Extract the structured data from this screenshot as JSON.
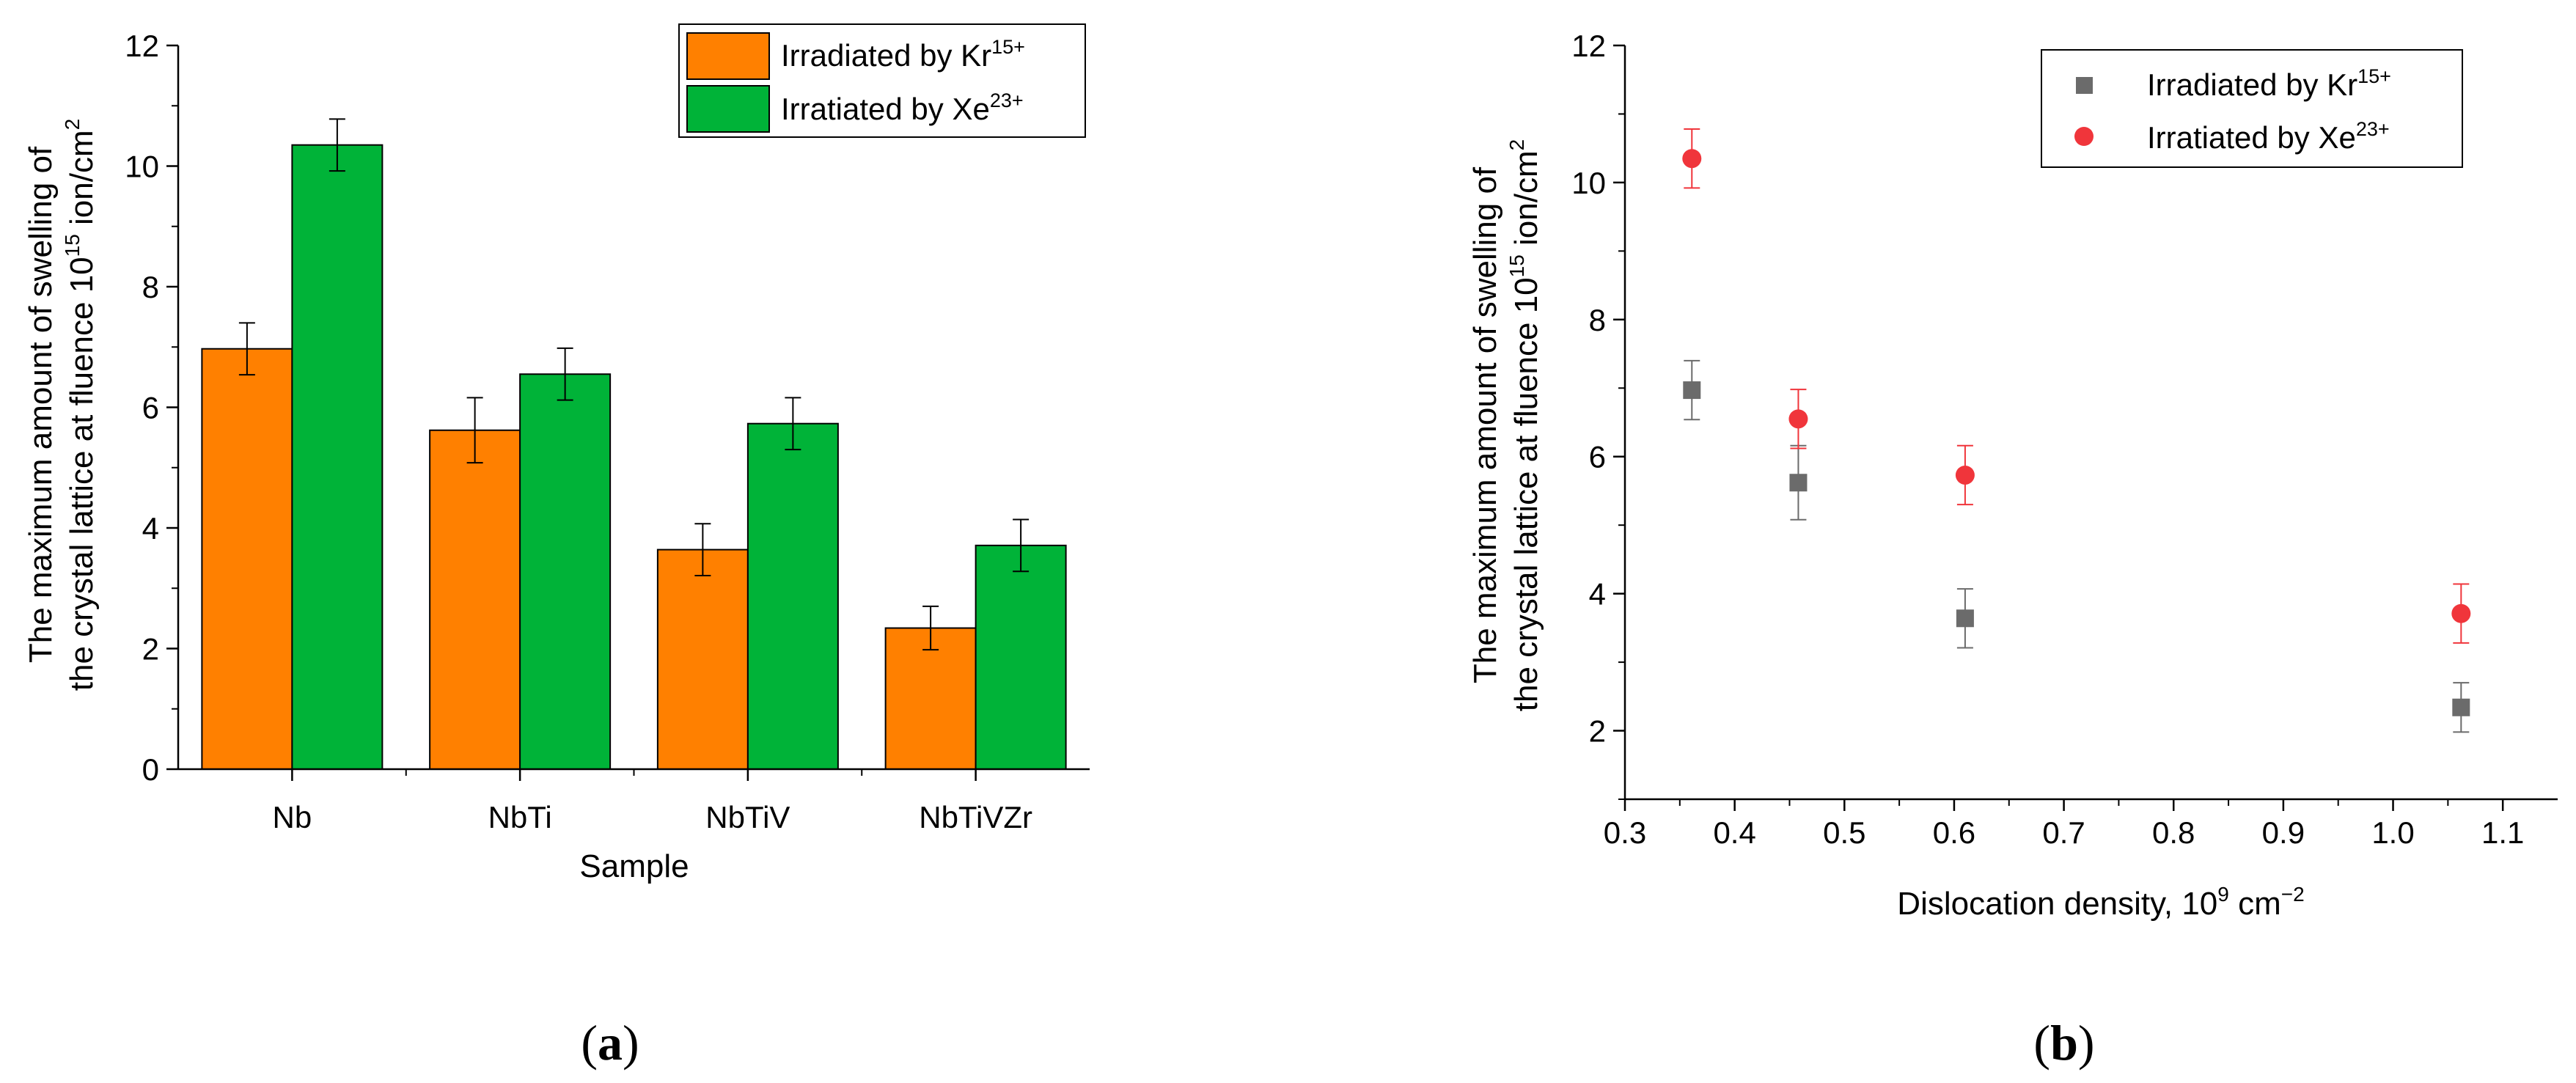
{
  "chart_data": [
    {
      "id": "a",
      "type": "bar",
      "panel_label": "a",
      "xlabel": "Sample",
      "ylabel_line1": "The maximum amount of swelling of",
      "ylabel_line2": "the crystal lattice at fluence 10",
      "ylabel_sup": "15",
      "ylabel_unit": " ion/cm",
      "ylabel_unit_sup": "2",
      "categories": [
        "Nb",
        "NbTi",
        "NbTiV",
        "NbTiVZr"
      ],
      "ylim": [
        0,
        12
      ],
      "yticks": [
        "0",
        "2",
        "4",
        "6",
        "8",
        "10",
        "12"
      ],
      "legend_position": "top-right",
      "series": [
        {
          "name": "Irradiated by Kr",
          "name_sup": "15+",
          "color": "#ff8000",
          "values": [
            6.97,
            5.62,
            3.64,
            2.34
          ],
          "errors": [
            0.43,
            0.54,
            0.43,
            0.36
          ]
        },
        {
          "name": "Irratiated by Xe",
          "name_sup": "23+",
          "color": "#00b338",
          "values": [
            10.35,
            6.55,
            5.73,
            3.71
          ],
          "errors": [
            0.43,
            0.43,
            0.43,
            0.43
          ]
        }
      ]
    },
    {
      "id": "b",
      "type": "scatter",
      "panel_label": "b",
      "xlabel": "Dislocation density, 10",
      "xlabel_sup": "9",
      "xlabel_unit": " cm",
      "xlabel_unit_sup": "−2",
      "ylabel_line1": "The maximum amount of swelling of",
      "ylabel_line2": "the crystal lattice at fluence 10",
      "ylabel_sup": "15",
      "ylabel_unit": " ion/cm",
      "ylabel_unit_sup": "2",
      "xlim": [
        0.3,
        1.15
      ],
      "ylim": [
        1,
        12
      ],
      "xticks": [
        "0.3",
        "0.4",
        "0.5",
        "0.6",
        "0.7",
        "0.8",
        "0.9",
        "1.0",
        "1.1"
      ],
      "yticks": [
        "2",
        "4",
        "6",
        "8",
        "10",
        "12"
      ],
      "legend_position": "top-right",
      "series": [
        {
          "name": "Irradiated by Kr",
          "name_sup": "15+",
          "color": "#6b6b6b",
          "marker": "square",
          "x": [
            0.361,
            0.458,
            0.61,
            1.062
          ],
          "y": [
            6.97,
            5.62,
            3.64,
            2.34
          ],
          "errors": [
            0.43,
            0.54,
            0.43,
            0.36
          ]
        },
        {
          "name": "Irratiated by Xe",
          "name_sup": "23+",
          "color": "#f0353b",
          "marker": "circle",
          "x": [
            0.361,
            0.458,
            0.61,
            1.062
          ],
          "y": [
            10.35,
            6.55,
            5.73,
            3.71
          ],
          "errors": [
            0.43,
            0.43,
            0.43,
            0.43
          ]
        }
      ]
    }
  ]
}
